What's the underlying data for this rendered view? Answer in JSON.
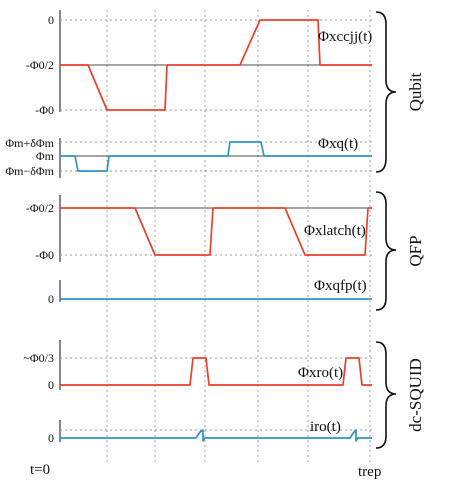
{
  "panels": {
    "qubit": {
      "ticks": {
        "zero": "0",
        "minus_half": "-Φ0/2",
        "minus_full": "-Φ0"
      },
      "signal_ccjj": "Φxccjj(t)",
      "ticks_q": {
        "plus": "Φm+δΦm",
        "mid": "Φm",
        "minus": "Φm−δΦm"
      },
      "signal_q": "Φxq(t)",
      "group": "Qubit"
    },
    "qfp": {
      "ticks_latch": {
        "minus_half": "-Φ0/2",
        "minus_full": "-Φ0"
      },
      "signal_latch": "Φxlatch(t)",
      "ticks_qfp": {
        "zero": "0"
      },
      "signal_qfp": "Φxqfp(t)",
      "group": "QFP"
    },
    "dcsquid": {
      "ticks_ro": {
        "third": "~Φ0/3",
        "zero": "0"
      },
      "signal_ro": "Φxro(t)",
      "ticks_i": {
        "zero": "0"
      },
      "signal_i": "iro(t)",
      "group": "dc-SQUID"
    }
  },
  "time_axis": {
    "start": "t=0",
    "end": "trep"
  },
  "colors": {
    "flux": "#e8412b",
    "bias": "#2f94c4"
  }
}
